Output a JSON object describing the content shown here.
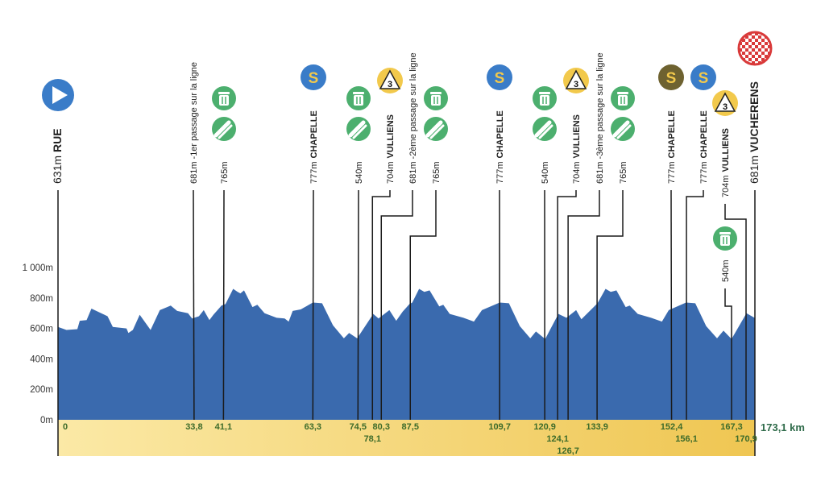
{
  "chart_data": {
    "type": "area",
    "title": "",
    "xlabel": "",
    "ylabel": "",
    "xlim": [
      0,
      173.1
    ],
    "ylim": [
      0,
      1000
    ],
    "x_end_label": "173,1 km",
    "y_ticks": [
      {
        "value": 0,
        "label": "0m"
      },
      {
        "value": 200,
        "label": "200m"
      },
      {
        "value": 400,
        "label": "400m"
      },
      {
        "value": 600,
        "label": "600m"
      },
      {
        "value": 800,
        "label": "800m"
      },
      {
        "value": 1000,
        "label": "1 000m"
      }
    ],
    "colors": {
      "profile": "#3a6aae",
      "band_light": "#fbe9a6",
      "band_dark": "#efc652",
      "km_text": "#3d6b2a",
      "start": "#3a7cc8",
      "sprint_blue": "#3a7cc8",
      "sprint_brown": "#6e6230",
      "kom": "#f2c94c",
      "service": "#4caf6e",
      "finish": "#d93a3a"
    },
    "profile": [
      [
        0,
        610
      ],
      [
        2.1,
        590
      ],
      [
        4.8,
        595
      ],
      [
        5.4,
        650
      ],
      [
        7.1,
        655
      ],
      [
        8.3,
        730
      ],
      [
        12.3,
        680
      ],
      [
        13.6,
        610
      ],
      [
        17,
        600
      ],
      [
        17.5,
        570
      ],
      [
        18.6,
        590
      ],
      [
        20.3,
        690
      ],
      [
        23,
        590
      ],
      [
        25.3,
        720
      ],
      [
        28,
        750
      ],
      [
        29.6,
        715
      ],
      [
        32.3,
        700
      ],
      [
        33.3,
        665
      ],
      [
        35,
        680
      ],
      [
        36.2,
        720
      ],
      [
        37.6,
        655
      ],
      [
        38.6,
        690
      ],
      [
        40.6,
        750
      ],
      [
        41.6,
        760
      ],
      [
        43.5,
        860
      ],
      [
        44.6,
        840
      ],
      [
        45.3,
        830
      ],
      [
        46.2,
        850
      ],
      [
        48.3,
        740
      ],
      [
        49.5,
        755
      ],
      [
        51.3,
        700
      ],
      [
        54.3,
        670
      ],
      [
        56.3,
        665
      ],
      [
        57.3,
        645
      ],
      [
        58.3,
        715
      ],
      [
        60.3,
        725
      ],
      [
        63.3,
        770
      ],
      [
        65.6,
        765
      ],
      [
        68.3,
        620
      ],
      [
        71,
        535
      ],
      [
        72.3,
        570
      ],
      [
        74.3,
        535
      ],
      [
        78.3,
        695
      ],
      [
        79.6,
        665
      ],
      [
        82.3,
        720
      ],
      [
        84,
        650
      ],
      [
        85.6,
        710
      ],
      [
        87.3,
        760
      ],
      [
        88,
        770
      ],
      [
        89.7,
        860
      ],
      [
        91,
        840
      ],
      [
        92.3,
        850
      ],
      [
        94.7,
        745
      ],
      [
        95.7,
        755
      ],
      [
        97.3,
        695
      ],
      [
        100.7,
        670
      ],
      [
        103.3,
        645
      ],
      [
        105.3,
        720
      ],
      [
        109.7,
        770
      ],
      [
        112,
        765
      ],
      [
        114.7,
        615
      ],
      [
        117.3,
        535
      ],
      [
        118.7,
        580
      ],
      [
        121,
        530
      ],
      [
        124.3,
        695
      ],
      [
        126.3,
        670
      ],
      [
        128.7,
        720
      ],
      [
        130,
        660
      ],
      [
        134,
        765
      ],
      [
        136,
        860
      ],
      [
        137.3,
        840
      ],
      [
        138.7,
        850
      ],
      [
        141,
        740
      ],
      [
        142,
        750
      ],
      [
        144,
        695
      ],
      [
        147.3,
        670
      ],
      [
        150,
        645
      ],
      [
        151.7,
        720
      ],
      [
        156,
        770
      ],
      [
        158.3,
        765
      ],
      [
        161,
        615
      ],
      [
        163.7,
        535
      ],
      [
        165.3,
        585
      ],
      [
        167.3,
        530
      ],
      [
        171,
        700
      ],
      [
        173,
        670
      ],
      [
        173.1,
        681
      ]
    ],
    "markers": [
      {
        "km": 0,
        "km_label": "0",
        "altitude": "631m",
        "name": "RUE",
        "icons": [
          "start-icon"
        ]
      },
      {
        "km": 33.8,
        "km_label": "33,8",
        "altitude": "681m",
        "note": "-1er passage sur la ligne",
        "icons": []
      },
      {
        "km": 41.1,
        "km_label": "41,1",
        "altitude": "765m",
        "icons": [
          "trash-icon",
          "feed-zone-icon"
        ]
      },
      {
        "km": 63.3,
        "km_label": "63,3",
        "altitude": "777m",
        "name": "CHAPELLE",
        "icons": [
          "sprint-icon"
        ]
      },
      {
        "km": 74.5,
        "km_label": "74,5",
        "altitude": "540m",
        "icons": [
          "trash-icon",
          "feed-zone-icon"
        ]
      },
      {
        "km": 78.1,
        "km_label": "78,1",
        "altitude": "704m",
        "name": "VULLIENS",
        "icons": [
          "kom-cat3-icon"
        ],
        "kom_category": "3"
      },
      {
        "km": 80.3,
        "km_label": "80,3",
        "altitude": "681m",
        "note": "-2ème passage sur la ligne",
        "icons": []
      },
      {
        "km": 87.5,
        "km_label": "87,5",
        "altitude": "765m",
        "icons": [
          "trash-icon",
          "feed-zone-icon"
        ]
      },
      {
        "km": 109.7,
        "km_label": "109,7",
        "altitude": "777m",
        "name": "CHAPELLE",
        "icons": [
          "sprint-icon"
        ]
      },
      {
        "km": 120.9,
        "km_label": "120,9",
        "altitude": "540m",
        "icons": [
          "trash-icon",
          "feed-zone-icon"
        ]
      },
      {
        "km": 124.1,
        "km_label": "124,1",
        "altitude": "704m",
        "name": "VULLIENS",
        "icons": [
          "kom-cat3-icon"
        ],
        "kom_category": "3"
      },
      {
        "km": 126.7,
        "km_label": "126,7",
        "altitude": "681m",
        "note": "-3ème passage sur la ligne",
        "icons": []
      },
      {
        "km": 133.9,
        "km_label": "133,9",
        "altitude": "765m",
        "icons": [
          "trash-icon",
          "feed-zone-icon"
        ]
      },
      {
        "km": 152.4,
        "km_label": "152,4",
        "altitude": "777m",
        "name": "CHAPELLE",
        "icons": [
          "bonus-sprint-icon"
        ]
      },
      {
        "km": 156.1,
        "km_label": "156,1",
        "altitude": "777m",
        "name": "CHAPELLE",
        "icons": [
          "sprint-icon"
        ]
      },
      {
        "km": 167.3,
        "km_label": "167,3",
        "altitude": "540m",
        "icons": [
          "trash-icon"
        ]
      },
      {
        "km": 170.9,
        "km_label": "170,9",
        "altitude": "704m",
        "name": "VULLIENS",
        "icons": [
          "kom-cat3-icon"
        ],
        "kom_category": "3"
      },
      {
        "km": 173.1,
        "km_label": "",
        "altitude": "681m",
        "name": "VUCHERENS",
        "icons": [
          "finish-icon"
        ]
      }
    ],
    "sprint_letter": "S"
  }
}
